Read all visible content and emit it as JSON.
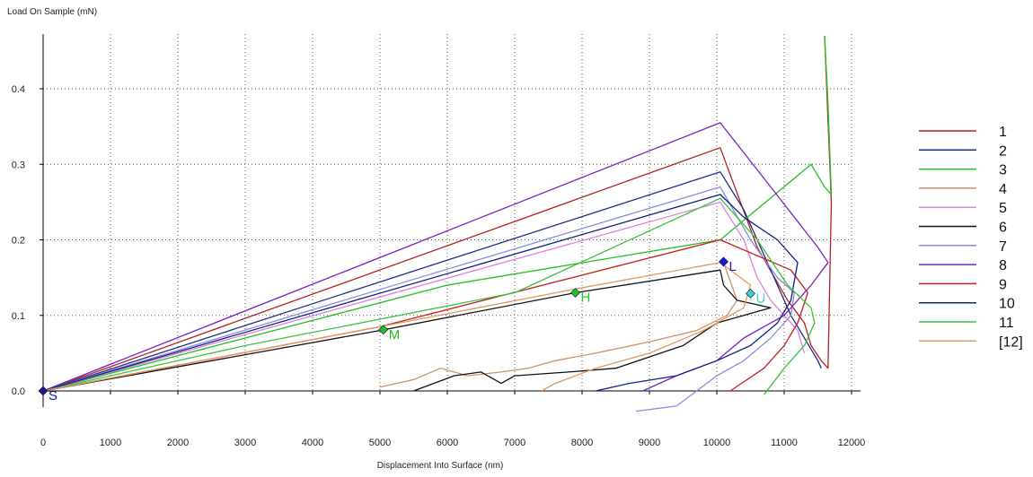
{
  "chart_data": {
    "type": "line",
    "title": "",
    "xlabel": "Displacement Into Surface (nm)",
    "ylabel": "Load On Sample (mN)",
    "xlim": [
      0,
      12000
    ],
    "ylim": [
      0,
      0.47
    ],
    "x_ticks": [
      0,
      1000,
      2000,
      3000,
      4000,
      5000,
      6000,
      7000,
      8000,
      9000,
      10000,
      11000,
      12000
    ],
    "y_ticks": [
      0.0,
      0.1,
      0.2,
      0.3,
      0.4
    ],
    "x_tick_labels": [
      "0",
      "1000",
      "2000",
      "3000",
      "4000",
      "5000",
      "6000",
      "7000",
      "8000",
      "9000",
      "10000",
      "11000",
      "12000"
    ],
    "y_tick_labels": [
      "0.0",
      "0.1",
      "0.2",
      "0.3",
      "0.4"
    ],
    "grid": "dotted",
    "legend_position": "right",
    "series": [
      {
        "name": "1",
        "color": "#b22222",
        "x": [
          0,
          10050,
          10600,
          11050,
          11300,
          11400,
          11550,
          11650,
          11700,
          11600
        ],
        "y": [
          0,
          0.322,
          0.19,
          0.12,
          0.09,
          0.06,
          0.04,
          0.03,
          0.25,
          0.47
        ]
      },
      {
        "name": "2",
        "color": "#1f2d8a",
        "x": [
          0,
          10050,
          10400,
          10700,
          10900,
          11100,
          11300,
          11500,
          11550
        ],
        "y": [
          0,
          0.29,
          0.24,
          0.18,
          0.14,
          0.1,
          0.07,
          0.04,
          0.03
        ]
      },
      {
        "name": "3",
        "color": "#22c022",
        "x": [
          0,
          3000,
          6000,
          10050,
          11400,
          11600,
          11700,
          11650,
          11600
        ],
        "y": [
          0,
          0.07,
          0.14,
          0.2,
          0.3,
          0.27,
          0.26,
          0.38,
          0.47
        ]
      },
      {
        "name": "4",
        "color": "#d0906a",
        "x": [
          5000,
          5500,
          5900,
          6300,
          6800,
          7200,
          7600,
          8200,
          9000,
          9700,
          10150,
          10300,
          10100
        ],
        "y": [
          0.005,
          0.015,
          0.03,
          0.02,
          0.025,
          0.03,
          0.04,
          0.05,
          0.065,
          0.08,
          0.1,
          0.12,
          0.17
        ]
      },
      {
        "name": "5",
        "color": "#e080e0",
        "x": [
          0,
          10050,
          10400,
          10600,
          10800,
          11000,
          11200,
          11300
        ],
        "y": [
          0,
          0.25,
          0.2,
          0.15,
          0.12,
          0.1,
          0.08,
          0.05
        ]
      },
      {
        "name": "6",
        "color": "#111111",
        "x": [
          0,
          5000,
          7900,
          10050,
          10100,
          10300,
          10800,
          10000,
          9500,
          8500,
          7800,
          7000,
          6800,
          6500,
          6100,
          5500
        ],
        "y": [
          0,
          0.08,
          0.13,
          0.16,
          0.14,
          0.12,
          0.11,
          0.09,
          0.06,
          0.03,
          0.025,
          0.02,
          0.01,
          0.025,
          0.02,
          0
        ]
      },
      {
        "name": "7",
        "color": "#8c8ce0",
        "x": [
          0,
          10050,
          10500,
          10900,
          11150,
          11100,
          10800,
          10400,
          10000,
          9400,
          8800
        ],
        "y": [
          0,
          0.27,
          0.2,
          0.15,
          0.13,
          0.1,
          0.07,
          0.04,
          0.02,
          -0.02,
          -0.027
        ]
      },
      {
        "name": "8",
        "color": "#7a22c0",
        "x": [
          0,
          10050,
          10800,
          11500,
          11650,
          11400,
          11000,
          10400,
          10000,
          9400,
          8900
        ],
        "y": [
          0,
          0.355,
          0.27,
          0.19,
          0.17,
          0.14,
          0.1,
          0.07,
          0.04,
          0.02,
          0.0
        ]
      },
      {
        "name": "9",
        "color": "#c02020",
        "x": [
          0,
          5000,
          10050,
          11100,
          11350,
          11200,
          11000,
          10700,
          10200
        ],
        "y": [
          0,
          0.085,
          0.2,
          0.16,
          0.13,
          0.09,
          0.06,
          0.03,
          0.0
        ]
      },
      {
        "name": "10",
        "color": "#102080",
        "x": [
          0,
          10050,
          10400,
          10900,
          11200,
          11100,
          10900,
          10500,
          10000,
          9400,
          8700,
          8200
        ],
        "y": [
          0,
          0.26,
          0.23,
          0.2,
          0.17,
          0.12,
          0.09,
          0.06,
          0.04,
          0.02,
          0.01,
          0.0
        ]
      },
      {
        "name": "11",
        "color": "#40c040",
        "x": [
          0,
          3000,
          7000,
          10050,
          10600,
          11050,
          11400,
          11450,
          11300,
          11000,
          10700
        ],
        "y": [
          0,
          0.06,
          0.13,
          0.255,
          0.2,
          0.14,
          0.11,
          0.09,
          0.06,
          0.03,
          -0.005
        ]
      },
      {
        "name": "[12]",
        "color": "#e09a60",
        "x": [
          0,
          5000,
          7900,
          10050,
          10500,
          10400,
          9800,
          9000,
          8200,
          7600,
          7400
        ],
        "y": [
          0,
          0.085,
          0.135,
          0.17,
          0.14,
          0.11,
          0.08,
          0.05,
          0.03,
          0.01,
          0.0
        ]
      }
    ],
    "markers": [
      {
        "label": "S",
        "x": 0,
        "y": 0,
        "color": "#1a1a8a",
        "label_color": "#1a1a8a"
      },
      {
        "label": "M",
        "x": 5050,
        "y": 0.081,
        "color": "#22c022",
        "label_color": "#22c022"
      },
      {
        "label": "H",
        "x": 7900,
        "y": 0.13,
        "color": "#22c022",
        "label_color": "#22c022"
      },
      {
        "label": "L",
        "x": 10100,
        "y": 0.171,
        "color": "#1a1acc",
        "label_color": "#1a1acc"
      },
      {
        "label": "U",
        "x": 10500,
        "y": 0.129,
        "color": "#40d0d0",
        "label_color": "#40d0d0"
      }
    ]
  }
}
